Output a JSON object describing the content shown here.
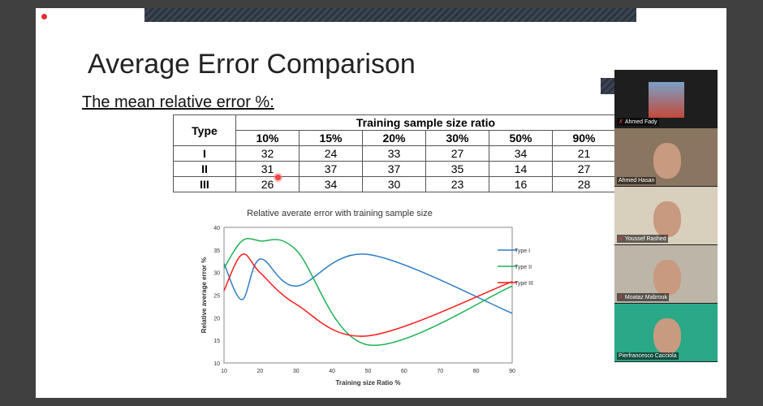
{
  "slide": {
    "title": "Average Error Comparison",
    "subtitle": "The mean relative error %:"
  },
  "table": {
    "row_header": "Type",
    "group_header": "Training sample size ratio",
    "columns": [
      "10%",
      "15%",
      "20%",
      "30%",
      "50%",
      "90%"
    ],
    "rows": [
      {
        "type": "I",
        "values": [
          "32",
          "24",
          "33",
          "27",
          "34",
          "21"
        ]
      },
      {
        "type": "II",
        "values": [
          "31",
          "37",
          "37",
          "35",
          "14",
          "27"
        ]
      },
      {
        "type": "III",
        "values": [
          "26",
          "34",
          "30",
          "23",
          "16",
          "28"
        ]
      }
    ]
  },
  "chart_data": {
    "type": "line",
    "title": "Relative averate error with training sample size",
    "xlabel": "Training size Ratio %",
    "ylabel": "Relative average error %",
    "x": [
      10,
      15,
      20,
      30,
      50,
      90
    ],
    "xlim": [
      10,
      90
    ],
    "ylim": [
      10,
      40
    ],
    "xticks": [
      "10",
      "20",
      "30",
      "40",
      "50",
      "60",
      "70",
      "80",
      "90"
    ],
    "yticks": [
      "10",
      "15",
      "20",
      "25",
      "30",
      "35",
      "40"
    ],
    "legend": "right",
    "grid": false,
    "series": [
      {
        "name": "Type I",
        "values": [
          32,
          24,
          33,
          27,
          34,
          21
        ],
        "color": "#2e7cc4"
      },
      {
        "name": "Type II",
        "values": [
          31,
          37,
          37,
          35,
          14,
          27
        ],
        "color": "#1fb254"
      },
      {
        "name": "Type III",
        "values": [
          26,
          34,
          30,
          23,
          16,
          28
        ],
        "color": "#ff1a1a"
      }
    ]
  },
  "participants": [
    {
      "name": "Ahmed Fady",
      "muted": true
    },
    {
      "name": "Ahmed Hasan",
      "muted": false
    },
    {
      "name": "Youssef Rashed",
      "muted": true
    },
    {
      "name": "Moataz Mabrouk",
      "muted": true
    },
    {
      "name": "Pierfrancesco Cacciola",
      "muted": false
    }
  ],
  "icons": {
    "muted": "mic-off-icon",
    "recording": "record-icon"
  }
}
